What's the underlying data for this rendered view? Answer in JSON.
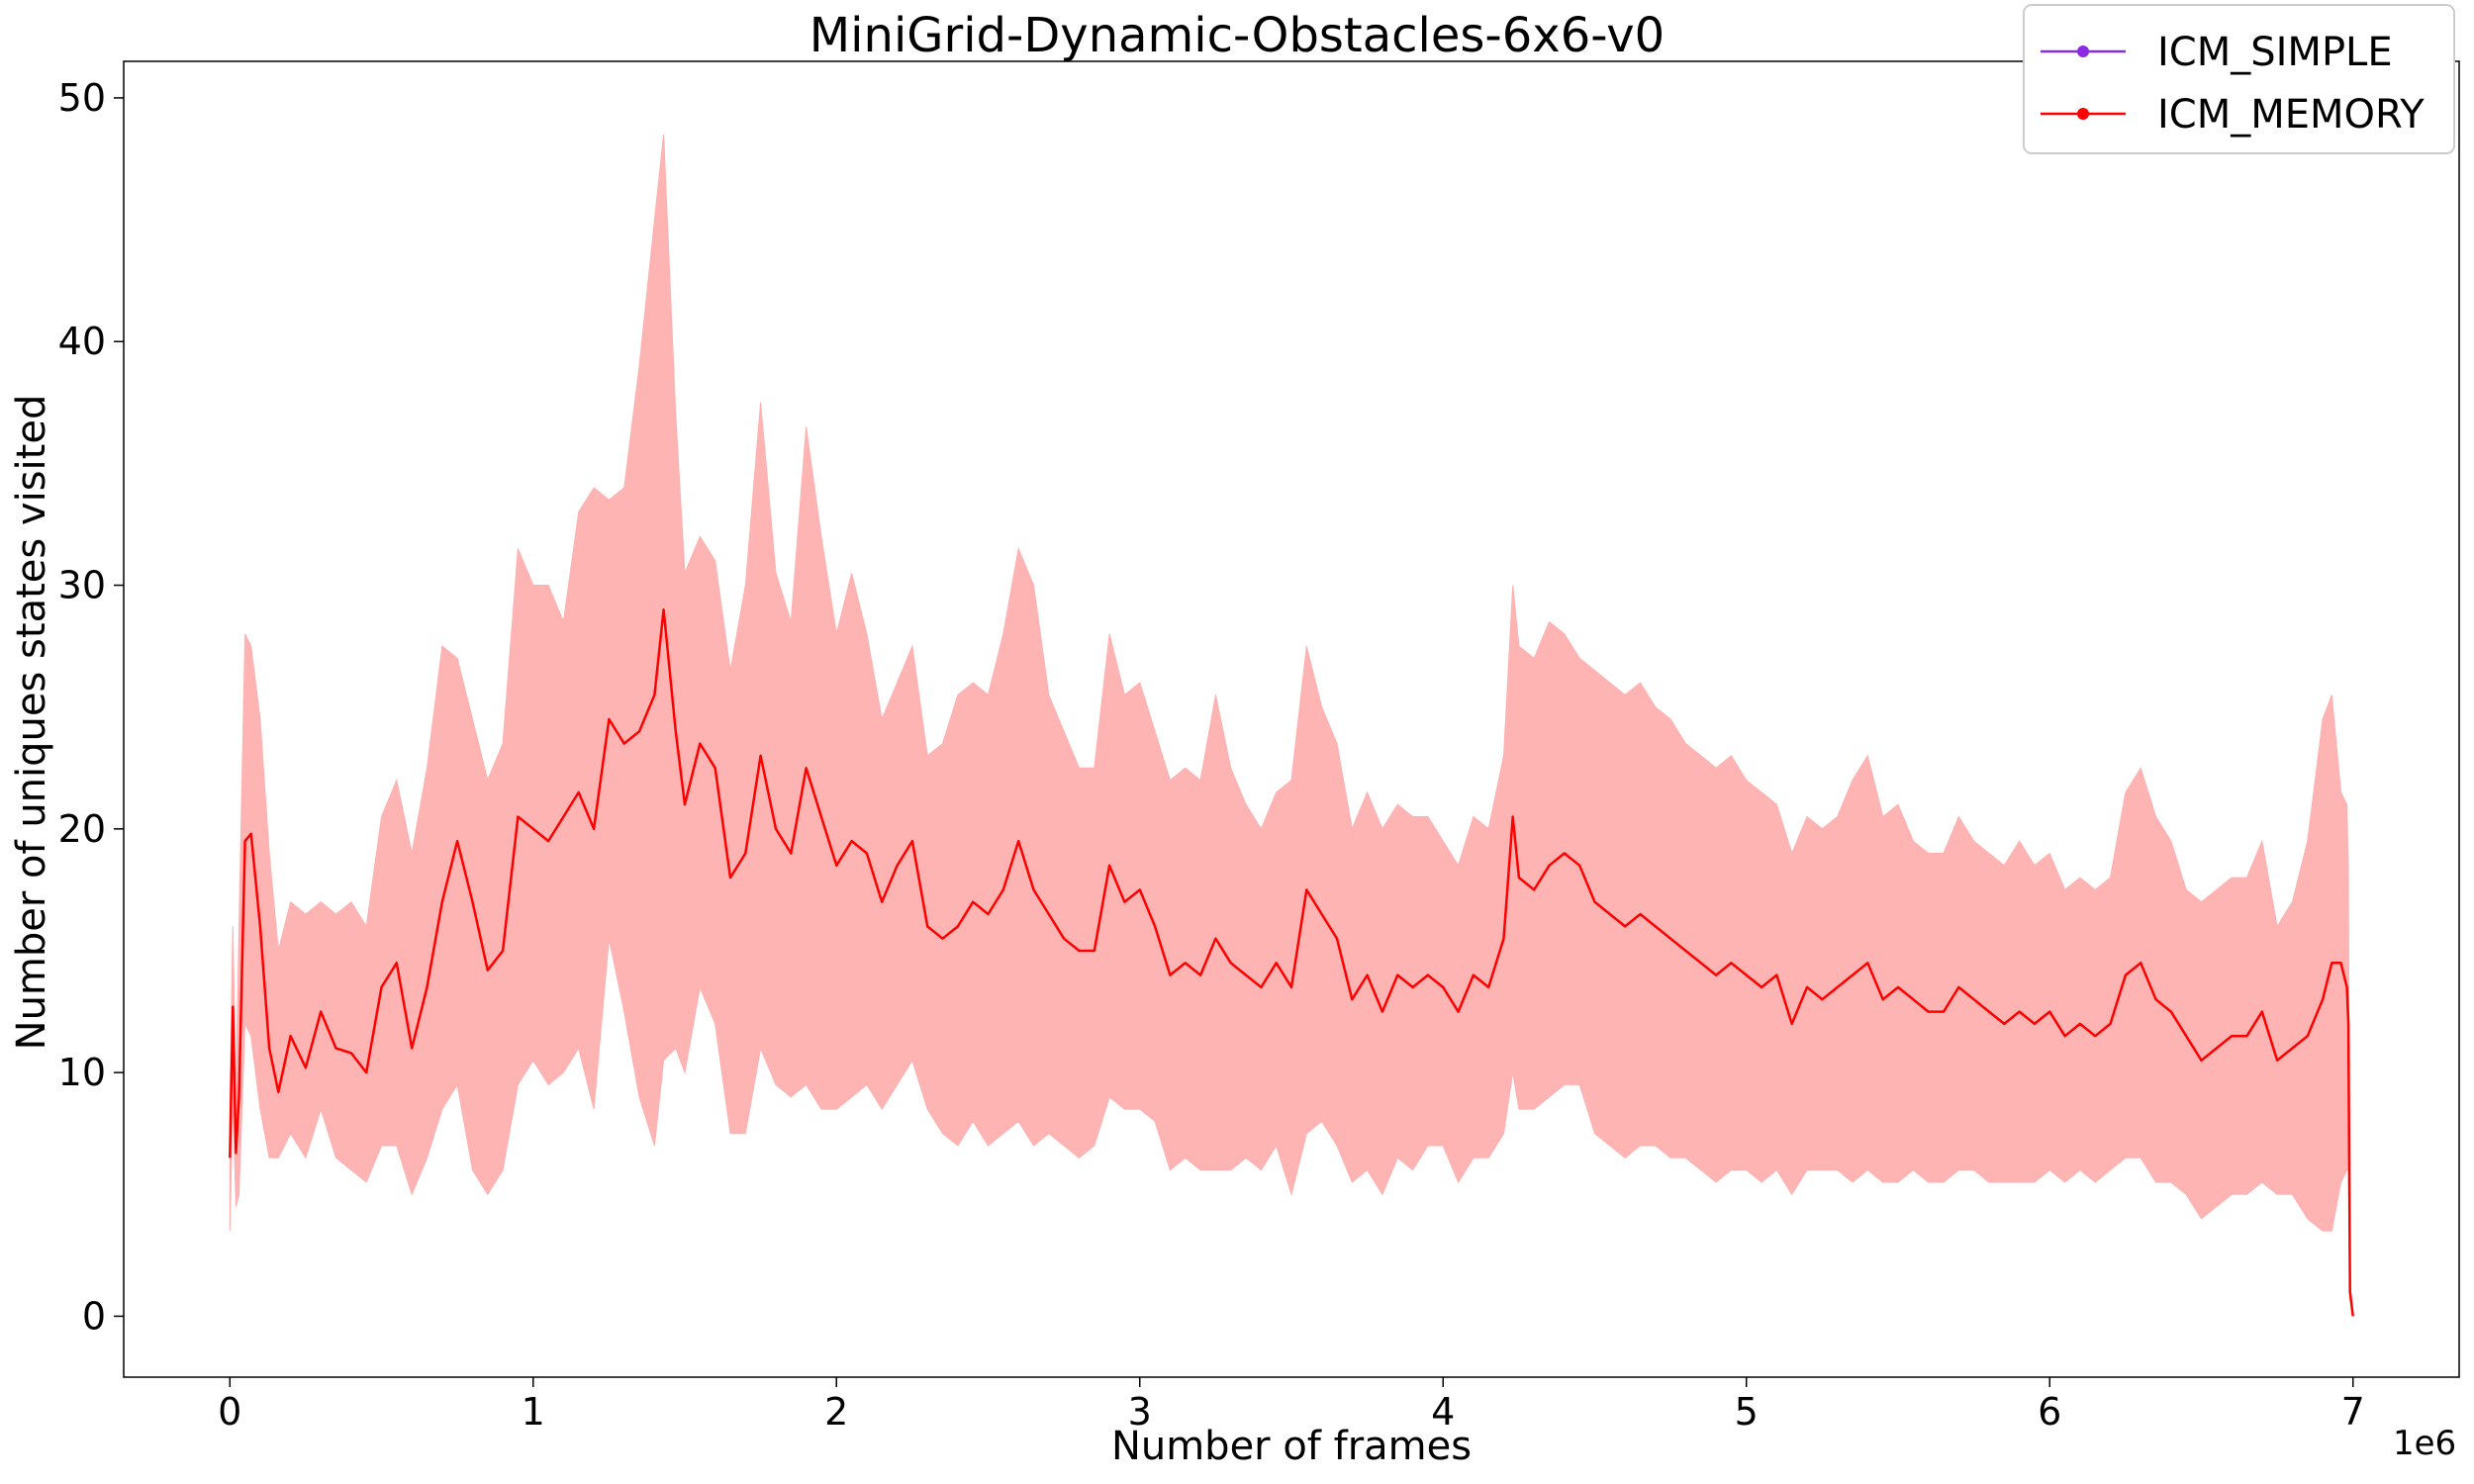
{
  "chart_data": {
    "type": "line",
    "title": "MiniGrid-Dynamic-Obstacles-6x6-v0",
    "xlabel": "Number of frames",
    "ylabel": "Number of uniques states visited",
    "x_offset_label": "1e6",
    "xlim": [
      -0.35,
      7.35
    ],
    "ylim": [
      -2.5,
      51.5
    ],
    "x_ticks": [
      0,
      1,
      2,
      3,
      4,
      5,
      6,
      7
    ],
    "x_tick_labels": [
      "0",
      "1",
      "2",
      "3",
      "4",
      "5",
      "6",
      "7"
    ],
    "y_ticks": [
      0,
      10,
      20,
      30,
      40,
      50
    ],
    "y_tick_labels": [
      "0",
      "10",
      "20",
      "30",
      "40",
      "50"
    ],
    "grid": false,
    "legend_position": "top-right",
    "series": [
      {
        "name": "ICM_SIMPLE",
        "color": "#8a2be2",
        "x": [],
        "values": []
      },
      {
        "name": "ICM_MEMORY",
        "color": "#ff0000",
        "band_color": "#ffb0b0",
        "x": [
          0.0,
          0.01,
          0.02,
          0.03,
          0.05,
          0.07,
          0.1,
          0.13,
          0.16,
          0.2,
          0.25,
          0.3,
          0.35,
          0.4,
          0.45,
          0.5,
          0.55,
          0.6,
          0.65,
          0.7,
          0.75,
          0.8,
          0.85,
          0.9,
          0.95,
          1.0,
          1.05,
          1.1,
          1.15,
          1.2,
          1.25,
          1.3,
          1.35,
          1.4,
          1.43,
          1.47,
          1.5,
          1.55,
          1.6,
          1.65,
          1.7,
          1.75,
          1.8,
          1.85,
          1.9,
          1.95,
          2.0,
          2.05,
          2.1,
          2.15,
          2.2,
          2.25,
          2.3,
          2.35,
          2.4,
          2.45,
          2.5,
          2.55,
          2.6,
          2.65,
          2.7,
          2.75,
          2.8,
          2.85,
          2.9,
          2.95,
          3.0,
          3.05,
          3.1,
          3.15,
          3.2,
          3.25,
          3.3,
          3.35,
          3.4,
          3.45,
          3.5,
          3.55,
          3.6,
          3.65,
          3.7,
          3.75,
          3.8,
          3.85,
          3.9,
          3.95,
          4.0,
          4.05,
          4.1,
          4.15,
          4.2,
          4.23,
          4.25,
          4.3,
          4.35,
          4.4,
          4.45,
          4.5,
          4.55,
          4.6,
          4.65,
          4.7,
          4.75,
          4.8,
          4.85,
          4.9,
          4.95,
          5.0,
          5.05,
          5.1,
          5.15,
          5.2,
          5.25,
          5.3,
          5.35,
          5.4,
          5.45,
          5.5,
          5.55,
          5.6,
          5.65,
          5.7,
          5.75,
          5.8,
          5.85,
          5.9,
          5.95,
          6.0,
          6.05,
          6.1,
          6.15,
          6.2,
          6.25,
          6.3,
          6.35,
          6.4,
          6.45,
          6.5,
          6.55,
          6.6,
          6.65,
          6.7,
          6.75,
          6.8,
          6.85,
          6.9,
          6.93,
          6.96,
          6.98,
          6.985,
          6.99,
          7.0
        ],
        "values": [
          6.5,
          12.7,
          6.7,
          9.0,
          19.5,
          19.8,
          16.0,
          11.0,
          9.2,
          11.5,
          10.2,
          12.5,
          11.0,
          10.8,
          10.0,
          13.5,
          14.5,
          11.0,
          13.5,
          17.0,
          19.5,
          17.0,
          14.2,
          15.0,
          20.5,
          20.0,
          19.5,
          20.5,
          21.5,
          20.0,
          24.5,
          23.5,
          24.0,
          25.5,
          29.0,
          24.0,
          21.0,
          23.5,
          22.5,
          18.0,
          19.0,
          23.0,
          20.0,
          19.0,
          22.5,
          20.5,
          18.5,
          19.5,
          19.0,
          17.0,
          18.5,
          19.5,
          16.0,
          15.5,
          16.0,
          17.0,
          16.5,
          17.5,
          19.5,
          17.5,
          16.5,
          15.5,
          15.0,
          15.0,
          18.5,
          17.0,
          17.5,
          16.0,
          14.0,
          14.5,
          14.0,
          15.5,
          14.5,
          14.0,
          13.5,
          14.5,
          13.5,
          17.5,
          16.5,
          15.5,
          13.0,
          14.0,
          12.5,
          14.0,
          13.5,
          14.0,
          13.5,
          12.5,
          14.0,
          13.5,
          15.5,
          20.5,
          18.0,
          17.5,
          18.5,
          19.0,
          18.5,
          17.0,
          16.5,
          16.0,
          16.5,
          16.0,
          15.5,
          15.0,
          14.5,
          14.0,
          14.5,
          14.0,
          13.5,
          14.0,
          12.0,
          13.5,
          13.0,
          13.5,
          14.0,
          14.5,
          13.0,
          13.5,
          13.0,
          12.5,
          12.5,
          13.5,
          13.0,
          12.5,
          12.0,
          12.5,
          12.0,
          12.5,
          11.5,
          12.0,
          11.5,
          12.0,
          14.0,
          14.5,
          13.0,
          12.5,
          11.5,
          10.5,
          11.0,
          11.5,
          11.5,
          12.5,
          10.5,
          11.0,
          11.5,
          13.0,
          14.5,
          14.5,
          13.5,
          12.0,
          1.0,
          0.0
        ],
        "upper": [
          9.0,
          16.0,
          9.0,
          16.0,
          28.0,
          27.5,
          24.5,
          19.0,
          15.0,
          17.0,
          16.5,
          17.0,
          16.5,
          17.0,
          16.0,
          20.5,
          22.0,
          19.0,
          22.5,
          27.5,
          27.0,
          24.5,
          22.0,
          23.5,
          31.5,
          30.0,
          30.0,
          28.5,
          33.0,
          34.0,
          33.5,
          34.0,
          39.0,
          45.0,
          48.5,
          37.0,
          30.5,
          32.0,
          31.0,
          26.5,
          30.0,
          37.5,
          30.5,
          28.5,
          36.5,
          32.0,
          28.0,
          30.5,
          28.0,
          24.5,
          26.0,
          27.5,
          23.0,
          23.5,
          25.5,
          26.0,
          25.5,
          28.0,
          31.5,
          30.0,
          25.5,
          24.0,
          22.5,
          22.5,
          28.0,
          25.5,
          26.0,
          24.0,
          22.0,
          22.5,
          22.0,
          25.5,
          22.5,
          21.0,
          20.0,
          21.5,
          22.0,
          27.5,
          25.0,
          23.5,
          20.0,
          21.5,
          20.0,
          21.0,
          20.5,
          20.5,
          19.5,
          18.5,
          20.5,
          20.0,
          23.0,
          30.0,
          27.5,
          27.0,
          28.5,
          28.0,
          27.0,
          26.5,
          26.0,
          25.5,
          26.0,
          25.0,
          24.5,
          23.5,
          23.0,
          22.5,
          23.0,
          22.0,
          21.5,
          21.0,
          19.0,
          20.5,
          20.0,
          20.5,
          22.0,
          23.0,
          20.5,
          21.0,
          19.5,
          19.0,
          19.0,
          20.5,
          19.5,
          19.0,
          18.5,
          19.5,
          18.5,
          19.0,
          17.5,
          18.0,
          17.5,
          18.0,
          21.5,
          22.5,
          20.5,
          19.5,
          17.5,
          17.0,
          17.5,
          18.0,
          18.0,
          19.5,
          16.0,
          17.0,
          19.5,
          24.5,
          25.5,
          21.5,
          21.0,
          18.0,
          1.0,
          0.0
        ],
        "lower": [
          3.5,
          9.0,
          4.5,
          5.0,
          12.0,
          11.5,
          8.5,
          6.5,
          6.5,
          7.5,
          6.5,
          8.5,
          6.5,
          6.0,
          5.5,
          7.0,
          7.0,
          5.0,
          6.5,
          8.5,
          9.5,
          6.0,
          5.0,
          6.0,
          9.5,
          10.5,
          9.5,
          10.0,
          11.0,
          8.5,
          15.5,
          12.5,
          9.0,
          7.0,
          10.5,
          11.0,
          10.0,
          13.5,
          12.0,
          7.5,
          7.5,
          11.0,
          9.5,
          9.0,
          9.5,
          8.5,
          8.5,
          9.0,
          9.5,
          8.5,
          9.5,
          10.5,
          8.5,
          7.5,
          7.0,
          8.0,
          7.0,
          7.5,
          8.0,
          7.0,
          7.5,
          7.0,
          6.5,
          7.0,
          9.0,
          8.5,
          8.5,
          8.0,
          6.0,
          6.5,
          6.0,
          6.0,
          6.0,
          6.5,
          6.0,
          7.0,
          5.0,
          7.5,
          8.0,
          7.0,
          5.5,
          6.0,
          5.0,
          6.5,
          6.0,
          7.0,
          7.0,
          5.5,
          6.5,
          6.5,
          7.5,
          10.0,
          8.5,
          8.5,
          9.0,
          9.5,
          9.5,
          7.5,
          7.0,
          6.5,
          7.0,
          7.0,
          6.5,
          6.5,
          6.0,
          5.5,
          6.0,
          6.0,
          5.5,
          6.0,
          5.0,
          6.0,
          6.0,
          6.0,
          5.5,
          6.0,
          5.5,
          5.5,
          6.0,
          5.5,
          5.5,
          6.0,
          6.0,
          5.5,
          5.5,
          5.5,
          5.5,
          6.0,
          5.5,
          6.0,
          5.5,
          6.0,
          6.5,
          6.5,
          5.5,
          5.5,
          5.0,
          4.0,
          4.5,
          5.0,
          5.0,
          5.5,
          5.0,
          5.0,
          4.0,
          3.5,
          3.5,
          5.5,
          6.0,
          6.0,
          1.0,
          0.0
        ]
      }
    ]
  }
}
